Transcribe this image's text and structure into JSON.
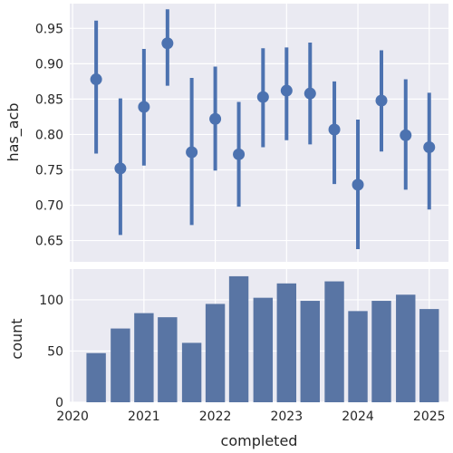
{
  "chart_data": [
    {
      "type": "pointplot",
      "title": "",
      "xlabel": "",
      "ylabel": "has_acb",
      "ylim": [
        0.62,
        0.985
      ],
      "yticks": [
        0.65,
        0.7,
        0.75,
        0.8,
        0.85,
        0.9,
        0.95
      ],
      "ytick_labels": [
        "0.65",
        "0.70",
        "0.75",
        "0.80",
        "0.85",
        "0.90",
        "0.95"
      ],
      "x": [
        2020.33,
        2020.67,
        2021.0,
        2021.33,
        2021.67,
        2022.0,
        2022.33,
        2022.67,
        2023.0,
        2023.33,
        2023.67,
        2024.0,
        2024.33,
        2024.67,
        2025.0
      ],
      "values": [
        0.878,
        0.752,
        0.839,
        0.929,
        0.775,
        0.822,
        0.772,
        0.853,
        0.862,
        0.858,
        0.807,
        0.729,
        0.848,
        0.799,
        0.782
      ],
      "ci_low": [
        0.773,
        0.658,
        0.756,
        0.869,
        0.672,
        0.749,
        0.698,
        0.782,
        0.792,
        0.786,
        0.73,
        0.638,
        0.776,
        0.722,
        0.694
      ],
      "ci_high": [
        0.961,
        0.851,
        0.921,
        0.977,
        0.88,
        0.896,
        0.846,
        0.922,
        0.923,
        0.93,
        0.875,
        0.821,
        0.919,
        0.878,
        0.859
      ],
      "color": "#4c72b0"
    },
    {
      "type": "bar",
      "title": "",
      "xlabel": "completed",
      "ylabel": "count",
      "ylim": [
        0,
        130
      ],
      "yticks": [
        0,
        50,
        100
      ],
      "ytick_labels": [
        "0",
        "50",
        "100"
      ],
      "x": [
        2020.33,
        2020.67,
        2021.0,
        2021.33,
        2021.67,
        2022.0,
        2022.33,
        2022.67,
        2023.0,
        2023.33,
        2023.67,
        2024.0,
        2024.33,
        2024.67,
        2025.0
      ],
      "values": [
        48,
        72,
        87,
        83,
        58,
        96,
        123,
        102,
        116,
        99,
        118,
        89,
        99,
        105,
        91
      ],
      "color": "#5975a4"
    }
  ],
  "x_axis": {
    "xlim": [
      2019.96,
      2025.27
    ],
    "xticks": [
      2020,
      2021,
      2022,
      2023,
      2024,
      2025
    ],
    "xtick_labels": [
      "2020",
      "2021",
      "2022",
      "2023",
      "2024",
      "2025"
    ]
  },
  "theme": {
    "panel_bg": "#eaeaf2",
    "grid": "#ffffff",
    "text": "#262626"
  }
}
